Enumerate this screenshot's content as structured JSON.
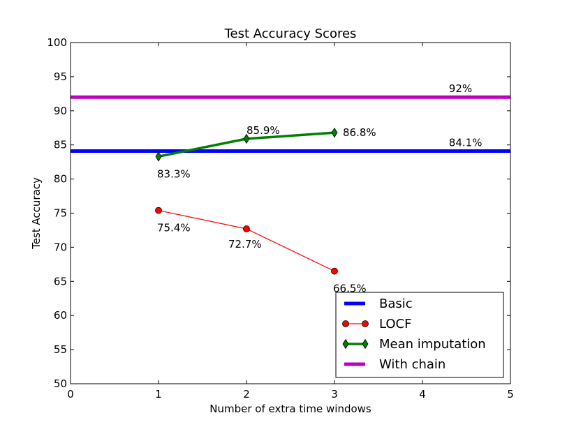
{
  "chart_data": {
    "type": "line",
    "title": "Test Accuracy Scores",
    "xlabel": "Number of extra time windows",
    "ylabel": "Test Accuracy",
    "xlim": [
      0,
      5
    ],
    "ylim": [
      50,
      100
    ],
    "xticks": [
      0,
      1,
      2,
      3,
      4,
      5
    ],
    "xtick_labels": [
      "0",
      "1",
      "2",
      "3",
      "4",
      "5"
    ],
    "yticks": [
      50,
      55,
      60,
      65,
      70,
      75,
      80,
      85,
      90,
      95,
      100
    ],
    "ytick_labels": [
      "50",
      "55",
      "60",
      "65",
      "70",
      "75",
      "80",
      "85",
      "90",
      "95",
      "100"
    ],
    "grid": false,
    "legend_position": "lower-right",
    "series": [
      {
        "name": "Basic",
        "kind": "hline",
        "x": [
          0,
          5
        ],
        "values": [
          84.1,
          84.1
        ],
        "color": "#0000ff",
        "marker": "none"
      },
      {
        "name": "LOCF",
        "kind": "line",
        "x": [
          1,
          2,
          3
        ],
        "values": [
          75.4,
          72.7,
          66.5
        ],
        "color": "#ff0000",
        "marker": "circle"
      },
      {
        "name": "Mean imputation",
        "kind": "line",
        "x": [
          1,
          2,
          3
        ],
        "values": [
          83.3,
          85.9,
          86.8
        ],
        "color": "#008000",
        "marker": "diamond"
      },
      {
        "name": "With chain",
        "kind": "hline",
        "x": [
          0,
          5
        ],
        "values": [
          92,
          92
        ],
        "color": "#bf00bf",
        "marker": "none"
      }
    ],
    "annotations": [
      {
        "text": "92%",
        "x": 4.3,
        "y": 92,
        "placement": "above"
      },
      {
        "text": "84.1%",
        "x": 4.3,
        "y": 84.1,
        "placement": "above"
      },
      {
        "text": "83.3%",
        "x": 1,
        "y": 83.3,
        "placement": "below"
      },
      {
        "text": "85.9%",
        "x": 2,
        "y": 85.9,
        "placement": "above"
      },
      {
        "text": "86.8%",
        "x": 3,
        "y": 86.8,
        "placement": "right"
      },
      {
        "text": "75.4%",
        "x": 1,
        "y": 75.4,
        "placement": "below"
      },
      {
        "text": "72.7%",
        "x": 2,
        "y": 72.7,
        "placement": "below-left"
      },
      {
        "text": "66.5%",
        "x": 3,
        "y": 66.5,
        "placement": "below"
      }
    ]
  }
}
